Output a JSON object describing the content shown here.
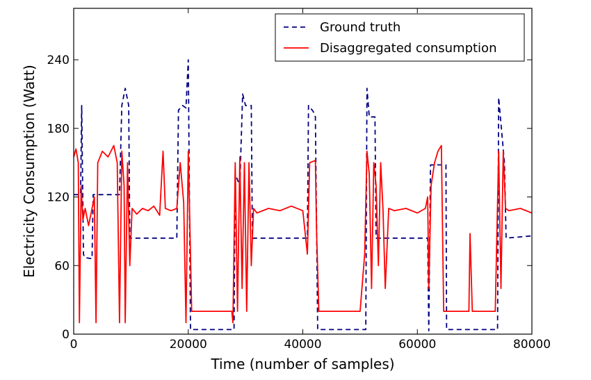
{
  "chart_data": {
    "type": "line",
    "title": "",
    "xlabel": "Time (number of samples)",
    "ylabel": "Electricity Consumption (Watt)",
    "xlim": [
      0,
      80000
    ],
    "ylim": [
      0,
      285
    ],
    "x_ticks": [
      0,
      20000,
      40000,
      60000,
      80000
    ],
    "y_ticks": [
      0,
      60,
      120,
      180,
      240
    ],
    "grid": false,
    "legend_position": "top-right",
    "series": [
      {
        "name": "Ground truth",
        "color": "#000080",
        "style": "dashed",
        "points": [
          [
            0,
            122
          ],
          [
            1200,
            122
          ],
          [
            1400,
            200
          ],
          [
            1700,
            70
          ],
          [
            1900,
            67
          ],
          [
            3200,
            66
          ],
          [
            3400,
            122
          ],
          [
            4000,
            122
          ],
          [
            8000,
            122
          ],
          [
            8400,
            200
          ],
          [
            9000,
            215
          ],
          [
            9600,
            200
          ],
          [
            9800,
            84
          ],
          [
            18000,
            84
          ],
          [
            18300,
            196
          ],
          [
            19000,
            200
          ],
          [
            19600,
            198
          ],
          [
            20000,
            240
          ],
          [
            20400,
            4
          ],
          [
            28000,
            4
          ],
          [
            28200,
            140
          ],
          [
            29000,
            130
          ],
          [
            29500,
            210
          ],
          [
            30000,
            200
          ],
          [
            31000,
            200
          ],
          [
            31200,
            84
          ],
          [
            40800,
            84
          ],
          [
            41000,
            200
          ],
          [
            41800,
            195
          ],
          [
            42200,
            190
          ],
          [
            42600,
            4
          ],
          [
            51000,
            4
          ],
          [
            51200,
            215
          ],
          [
            51600,
            190
          ],
          [
            52600,
            190
          ],
          [
            52800,
            84
          ],
          [
            61800,
            84
          ],
          [
            62000,
            3
          ],
          [
            62300,
            148
          ],
          [
            65000,
            148
          ],
          [
            65100,
            4
          ],
          [
            74000,
            4
          ],
          [
            74200,
            207
          ],
          [
            75200,
            150
          ],
          [
            75500,
            84
          ],
          [
            80000,
            86
          ]
        ]
      },
      {
        "name": "Disaggregated consumption",
        "color": "#ff0000",
        "style": "solid",
        "points": [
          [
            0,
            155
          ],
          [
            400,
            162
          ],
          [
            800,
            150
          ],
          [
            1000,
            10
          ],
          [
            1300,
            130
          ],
          [
            1600,
            100
          ],
          [
            2000,
            110
          ],
          [
            2600,
            95
          ],
          [
            3200,
            110
          ],
          [
            3600,
            120
          ],
          [
            3900,
            10
          ],
          [
            4200,
            150
          ],
          [
            5000,
            160
          ],
          [
            6000,
            155
          ],
          [
            7000,
            165
          ],
          [
            7600,
            150
          ],
          [
            8000,
            10
          ],
          [
            8400,
            160
          ],
          [
            8800,
            130
          ],
          [
            9000,
            10
          ],
          [
            9400,
            150
          ],
          [
            9800,
            60
          ],
          [
            10200,
            110
          ],
          [
            11000,
            105
          ],
          [
            12000,
            110
          ],
          [
            13000,
            108
          ],
          [
            14000,
            112
          ],
          [
            15000,
            104
          ],
          [
            15600,
            160
          ],
          [
            16000,
            110
          ],
          [
            17000,
            108
          ],
          [
            18000,
            110
          ],
          [
            18600,
            150
          ],
          [
            19200,
            115
          ],
          [
            19600,
            10
          ],
          [
            20000,
            160
          ],
          [
            20600,
            20
          ],
          [
            22000,
            20
          ],
          [
            24000,
            20
          ],
          [
            26000,
            20
          ],
          [
            27600,
            20
          ],
          [
            27800,
            10
          ],
          [
            28200,
            150
          ],
          [
            28600,
            20
          ],
          [
            29000,
            155
          ],
          [
            29400,
            40
          ],
          [
            29800,
            150
          ],
          [
            30200,
            20
          ],
          [
            30600,
            150
          ],
          [
            31000,
            60
          ],
          [
            31400,
            110
          ],
          [
            32000,
            106
          ],
          [
            34000,
            110
          ],
          [
            36000,
            108
          ],
          [
            38000,
            112
          ],
          [
            40000,
            108
          ],
          [
            40800,
            70
          ],
          [
            41200,
            150
          ],
          [
            42200,
            152
          ],
          [
            42400,
            90
          ],
          [
            42800,
            20
          ],
          [
            44000,
            20
          ],
          [
            46000,
            20
          ],
          [
            48000,
            20
          ],
          [
            50000,
            20
          ],
          [
            50800,
            70
          ],
          [
            51200,
            160
          ],
          [
            51600,
            140
          ],
          [
            52000,
            40
          ],
          [
            52400,
            150
          ],
          [
            52800,
            130
          ],
          [
            53200,
            60
          ],
          [
            53600,
            150
          ],
          [
            54000,
            110
          ],
          [
            54400,
            40
          ],
          [
            55000,
            110
          ],
          [
            56000,
            108
          ],
          [
            58000,
            110
          ],
          [
            60000,
            106
          ],
          [
            61400,
            110
          ],
          [
            61800,
            120
          ],
          [
            62000,
            40
          ],
          [
            62400,
            130
          ],
          [
            63000,
            150
          ],
          [
            63600,
            160
          ],
          [
            64200,
            165
          ],
          [
            64600,
            20
          ],
          [
            66000,
            20
          ],
          [
            68000,
            20
          ],
          [
            69000,
            20
          ],
          [
            69200,
            88
          ],
          [
            69600,
            20
          ],
          [
            72000,
            20
          ],
          [
            73600,
            20
          ],
          [
            74200,
            160
          ],
          [
            74600,
            40
          ],
          [
            75000,
            160
          ],
          [
            75400,
            110
          ],
          [
            76000,
            108
          ],
          [
            78000,
            110
          ],
          [
            80000,
            106
          ]
        ]
      }
    ]
  }
}
